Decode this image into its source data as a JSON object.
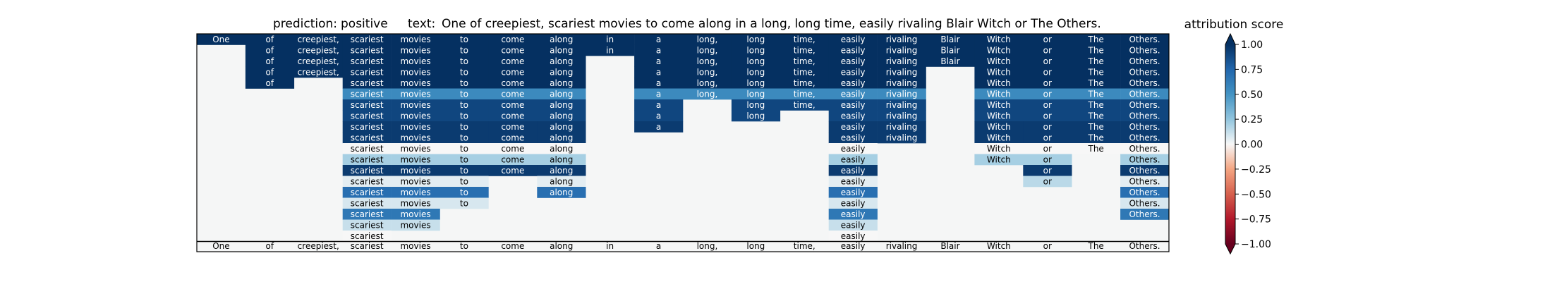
{
  "title": {
    "prediction_label": "prediction:",
    "prediction_value": "positive",
    "text_label": "text:",
    "text_value": "One of creepiest, scariest movies to come along in a long, long time, easily rivaling Blair Witch or The Others."
  },
  "colorbar": {
    "label": "attribution score",
    "ticks": [
      "1.00",
      "0.75",
      "0.50",
      "0.25",
      "0.00",
      "−0.25",
      "−0.50",
      "−0.75",
      "−1.00"
    ]
  },
  "chart_data": {
    "type": "heatmap",
    "tokens": [
      "One",
      "of",
      "creepiest,",
      "scariest",
      "movies",
      "to",
      "come",
      "along",
      "in",
      "a",
      "long,",
      "long",
      "time,",
      "easily",
      "rivaling",
      "Blair",
      "Witch",
      "or",
      "The",
      "Others."
    ],
    "bottom_row_tokens": [
      "One",
      "of",
      "creepiest,",
      "scariest",
      "movies",
      "to",
      "come",
      "along",
      "in",
      "a",
      "long,",
      "long",
      "time,",
      "easily",
      "rivaling",
      "Blair",
      "Witch",
      "or",
      "The",
      "Others."
    ],
    "value_range": [
      -1.0,
      1.0
    ],
    "colormap": "RdBu",
    "rows": [
      [
        1,
        1,
        1,
        1,
        1,
        1,
        1,
        1,
        1,
        1,
        1,
        1,
        1,
        1,
        1,
        1,
        1,
        1,
        1,
        1
      ],
      [
        null,
        1,
        1,
        1,
        1,
        1,
        1,
        1,
        1,
        1,
        1,
        1,
        1,
        1,
        1,
        1,
        1,
        1,
        1,
        1
      ],
      [
        null,
        1,
        1,
        1,
        1,
        1,
        1,
        1,
        null,
        1,
        1,
        1,
        1,
        1,
        1,
        1,
        1,
        1,
        1,
        1
      ],
      [
        null,
        1,
        1,
        1,
        1,
        1,
        1,
        1,
        null,
        1,
        1,
        1,
        1,
        1,
        1,
        null,
        1,
        1,
        1,
        1
      ],
      [
        null,
        1,
        null,
        1,
        1,
        1,
        1,
        1,
        null,
        1,
        1,
        1,
        1,
        1,
        1,
        null,
        1,
        1,
        1,
        1
      ],
      [
        null,
        null,
        null,
        0.55,
        0.55,
        0.55,
        0.55,
        0.55,
        null,
        0.55,
        0.55,
        0.55,
        0.55,
        0.55,
        0.55,
        null,
        0.55,
        0.55,
        0.55,
        0.55
      ],
      [
        null,
        null,
        null,
        0.9,
        0.9,
        0.9,
        0.9,
        0.9,
        null,
        0.9,
        null,
        0.9,
        0.9,
        0.9,
        0.9,
        null,
        0.9,
        0.9,
        0.9,
        0.9
      ],
      [
        null,
        null,
        null,
        0.9,
        0.9,
        0.9,
        0.9,
        0.9,
        null,
        0.9,
        null,
        0.9,
        null,
        0.9,
        0.9,
        null,
        0.9,
        0.9,
        0.9,
        0.9
      ],
      [
        null,
        null,
        null,
        0.95,
        0.95,
        0.95,
        0.95,
        0.95,
        null,
        0.95,
        null,
        null,
        null,
        0.95,
        0.95,
        null,
        0.95,
        0.95,
        0.95,
        0.95
      ],
      [
        null,
        null,
        null,
        0.95,
        0.95,
        0.95,
        0.95,
        0.95,
        null,
        null,
        null,
        null,
        null,
        0.95,
        0.95,
        null,
        0.95,
        0.95,
        0.95,
        0.95
      ],
      [
        null,
        null,
        null,
        0.0,
        0.0,
        0.0,
        0.0,
        0.0,
        null,
        null,
        null,
        null,
        null,
        0.0,
        null,
        null,
        0.0,
        0.0,
        0.0,
        0.0
      ],
      [
        null,
        null,
        null,
        0.2,
        0.2,
        0.2,
        0.2,
        0.2,
        null,
        null,
        null,
        null,
        null,
        0.2,
        null,
        null,
        0.2,
        0.2,
        null,
        0.2
      ],
      [
        null,
        null,
        null,
        0.95,
        0.95,
        0.95,
        0.95,
        0.95,
        null,
        null,
        null,
        null,
        null,
        0.95,
        null,
        null,
        null,
        0.95,
        null,
        0.95
      ],
      [
        null,
        null,
        null,
        0.05,
        0.05,
        0.05,
        null,
        0.05,
        null,
        null,
        null,
        null,
        null,
        0.05,
        null,
        null,
        null,
        0.15,
        null,
        0.05
      ],
      [
        null,
        null,
        null,
        0.7,
        0.7,
        0.7,
        null,
        0.7,
        null,
        null,
        null,
        null,
        null,
        0.7,
        null,
        null,
        null,
        null,
        null,
        0.7
      ],
      [
        null,
        null,
        null,
        0.08,
        0.08,
        0.08,
        null,
        null,
        null,
        null,
        null,
        null,
        null,
        0.08,
        null,
        null,
        null,
        null,
        null,
        0.08
      ],
      [
        null,
        null,
        null,
        0.65,
        0.65,
        null,
        null,
        null,
        null,
        null,
        null,
        null,
        null,
        0.65,
        null,
        null,
        null,
        null,
        null,
        0.65
      ],
      [
        null,
        null,
        null,
        0.12,
        0.12,
        null,
        null,
        null,
        null,
        null,
        null,
        null,
        null,
        0.12,
        null,
        null,
        null,
        null,
        null,
        null
      ],
      [
        null,
        null,
        null,
        0.0,
        null,
        null,
        null,
        null,
        null,
        null,
        null,
        null,
        null,
        0.0,
        null,
        null,
        null,
        null,
        null,
        null
      ]
    ]
  }
}
